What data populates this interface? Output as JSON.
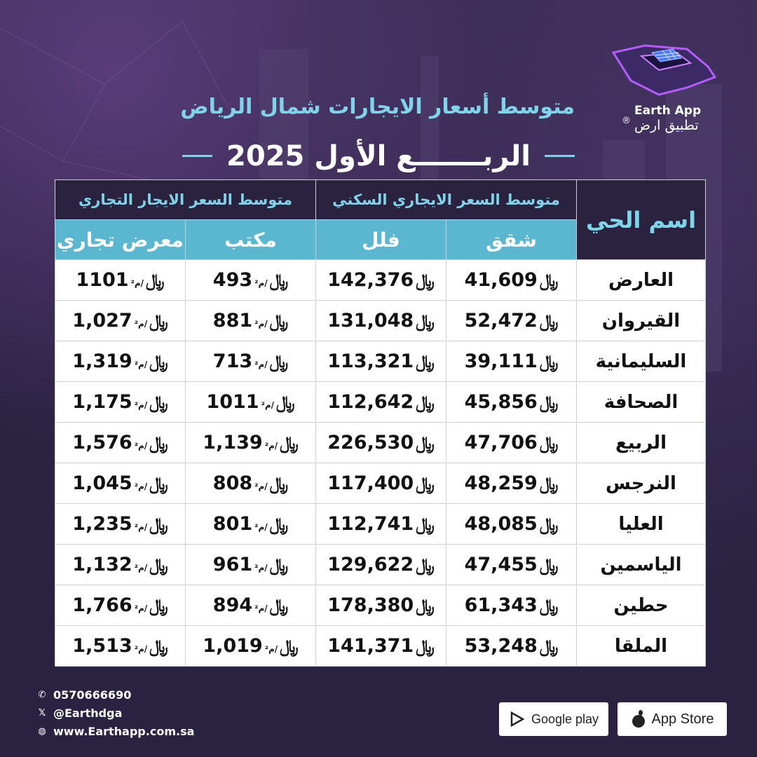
{
  "header": {
    "title": "متوسط أسعار الايجارات شمال الرياض",
    "subtitle": "الربـــــــع الأول 2025"
  },
  "brand": {
    "name_en": "Earth App",
    "name_ar": "تطبيق ارض",
    "reg": "®",
    "accent": "#7fd4ea",
    "logo_icon": "saudi-map-solar-icon"
  },
  "table": {
    "name_header": "اسم الحي",
    "residential_header": "متوسط السعر الايجاري السكني",
    "commercial_header": "متوسط السعر الايجار التجاري",
    "columns": [
      "شقق",
      "فلل",
      "مكتب",
      "معرض تجاري"
    ],
    "currency_symbol": "﷼",
    "unit_suffix": "/م²",
    "rows": [
      {
        "name": "العارض",
        "apartments": "41,609",
        "villas": "142,376",
        "office": "493",
        "showroom": "1101"
      },
      {
        "name": "القيروان",
        "apartments": "52,472",
        "villas": "131,048",
        "office": "881",
        "showroom": "1,027"
      },
      {
        "name": "السليمانية",
        "apartments": "39,111",
        "villas": "113,321",
        "office": "713",
        "showroom": "1,319"
      },
      {
        "name": "الصحافة",
        "apartments": "45,856",
        "villas": "112,642",
        "office": "1011",
        "showroom": "1,175"
      },
      {
        "name": "الربيع",
        "apartments": "47,706",
        "villas": "226,530",
        "office": "1,139",
        "showroom": "1,576"
      },
      {
        "name": "النرجس",
        "apartments": "48,259",
        "villas": "117,400",
        "office": "808",
        "showroom": "1,045"
      },
      {
        "name": "العليا",
        "apartments": "48,085",
        "villas": "112,741",
        "office": "801",
        "showroom": "1,235"
      },
      {
        "name": "الياسمين",
        "apartments": "47,455",
        "villas": "129,622",
        "office": "961",
        "showroom": "1,132"
      },
      {
        "name": "حطين",
        "apartments": "61,343",
        "villas": "178,380",
        "office": "894",
        "showroom": "1,766"
      },
      {
        "name": "الملقا",
        "apartments": "53,248",
        "villas": "141,371",
        "office": "1,019",
        "showroom": "1,513"
      }
    ]
  },
  "contact": {
    "phone": "0570666690",
    "handle": "@Earthdga",
    "website": "www.Earthapp.com.sa"
  },
  "stores": {
    "google_play": "Google play",
    "app_store": "App Store"
  }
}
